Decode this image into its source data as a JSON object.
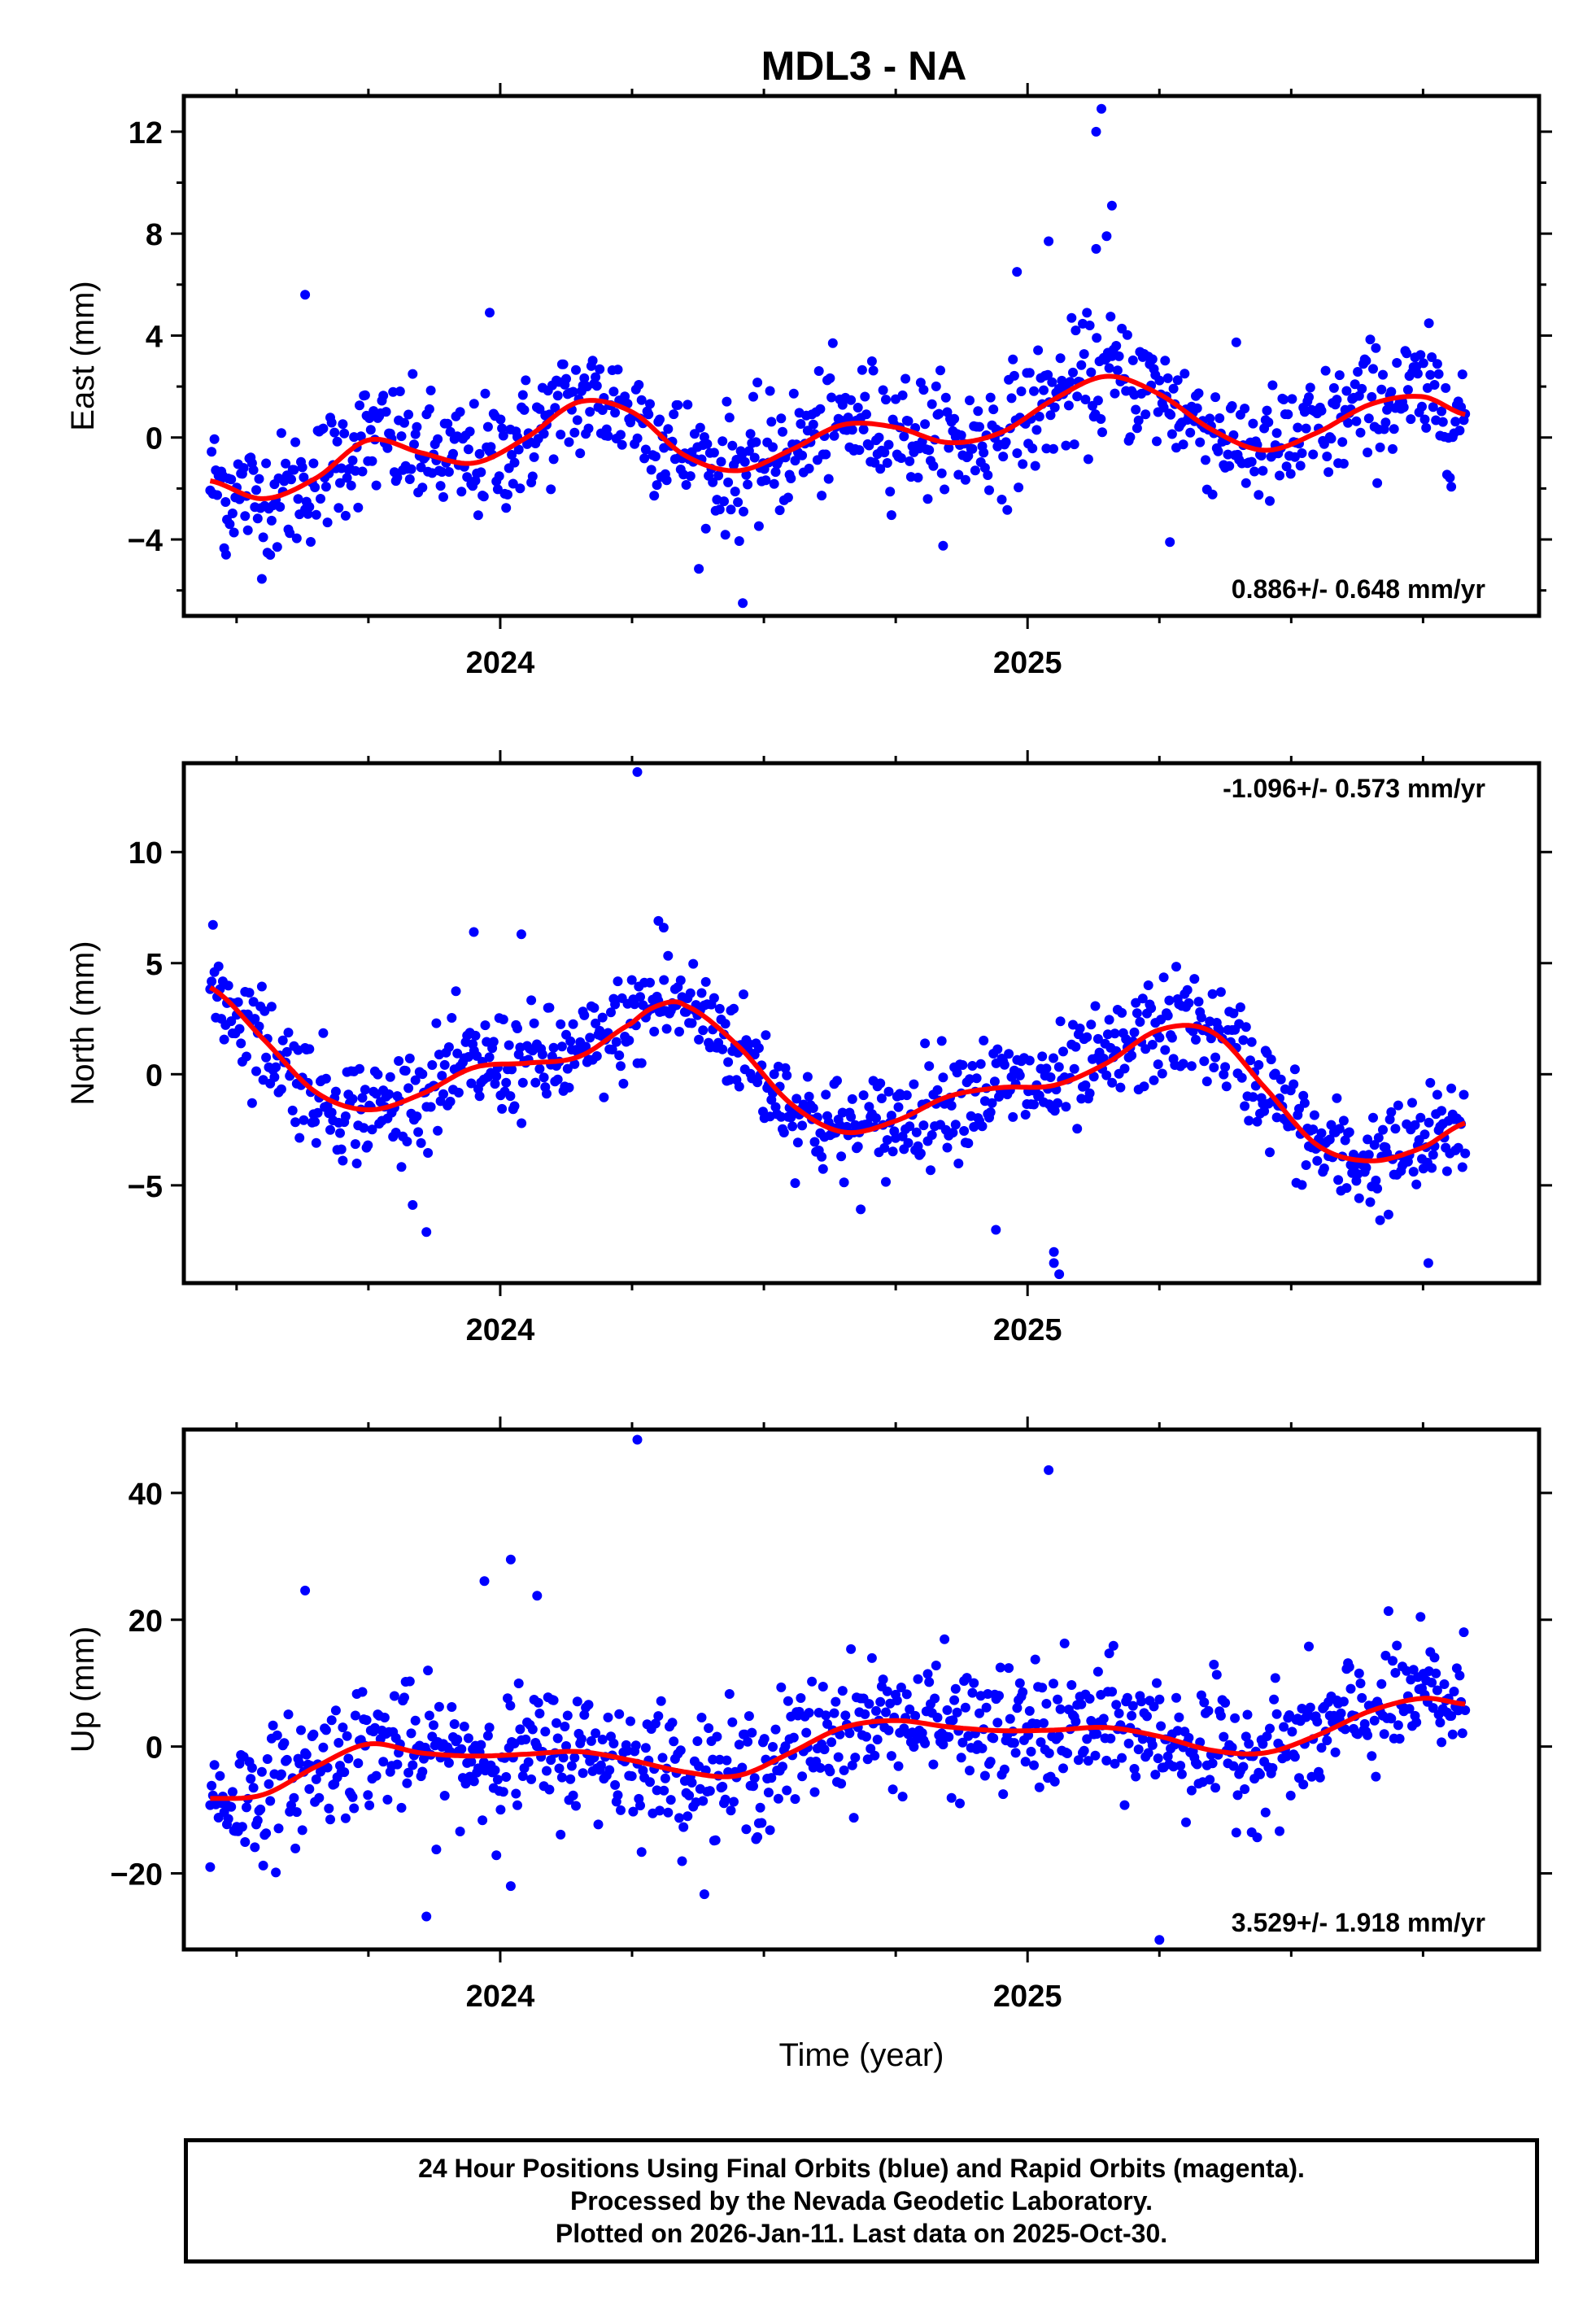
{
  "chart_data": [
    {
      "type": "scatter",
      "title": "MDL3 - NA",
      "ylabel": "East (mm)",
      "xlabel": "",
      "xlim": [
        2023.4,
        2025.97
      ],
      "ylim": [
        -7.0,
        13.4
      ],
      "yticks": [
        -4,
        0,
        4,
        8,
        12
      ],
      "yminor": [
        -6,
        -2,
        2,
        6,
        10
      ],
      "xticks": [
        2024,
        2025
      ],
      "rate": "0.886+/- 0.648 mm/yr",
      "rate_position": "bottom-right",
      "point_count": 900,
      "noise_sigma": 1.2,
      "fit_x": [
        2023.45,
        2023.55,
        2023.65,
        2023.75,
        2023.85,
        2023.95,
        2024.05,
        2024.15,
        2024.25,
        2024.35,
        2024.45,
        2024.55,
        2024.65,
        2024.75,
        2024.85,
        2024.95,
        2025.05,
        2025.15,
        2025.25,
        2025.35,
        2025.45,
        2025.55,
        2025.65,
        2025.75,
        2025.83
      ],
      "fit_y": [
        -1.7,
        -2.4,
        -1.6,
        -0.1,
        -0.6,
        -1.0,
        0.0,
        1.4,
        1.0,
        -0.7,
        -1.3,
        -0.5,
        0.5,
        0.4,
        -0.2,
        0.2,
        1.5,
        2.4,
        1.7,
        0.3,
        -0.5,
        0.2,
        1.3,
        1.6,
        0.9
      ],
      "outliers": [
        [
          2025.14,
          12.9
        ],
        [
          2025.13,
          12.0
        ],
        [
          2025.16,
          9.1
        ],
        [
          2025.15,
          7.9
        ],
        [
          2025.13,
          7.4
        ],
        [
          2024.98,
          6.5
        ],
        [
          2025.04,
          7.7
        ],
        [
          2023.63,
          5.6
        ],
        [
          2023.98,
          4.9
        ],
        [
          2024.46,
          -6.5
        ],
        [
          2023.48,
          -4.6
        ],
        [
          2025.27,
          -4.1
        ]
      ]
    },
    {
      "type": "scatter",
      "title": "",
      "ylabel": "North (mm)",
      "xlabel": "",
      "xlim": [
        2023.4,
        2025.97
      ],
      "ylim": [
        -9.4,
        14.0
      ],
      "yticks": [
        -5,
        0,
        5,
        10
      ],
      "yminor": [],
      "xticks": [
        2024,
        2025
      ],
      "rate": "-1.096+/- 0.573 mm/yr",
      "rate_position": "top-right",
      "point_count": 900,
      "noise_sigma": 1.2,
      "fit_x": [
        2023.45,
        2023.55,
        2023.65,
        2023.75,
        2023.85,
        2023.95,
        2024.05,
        2024.15,
        2024.25,
        2024.3,
        2024.35,
        2024.45,
        2024.55,
        2024.65,
        2024.75,
        2024.85,
        2024.95,
        2025.05,
        2025.15,
        2025.25,
        2025.35,
        2025.45,
        2025.55,
        2025.65,
        2025.75,
        2025.83
      ],
      "fit_y": [
        3.9,
        1.6,
        -0.8,
        -1.6,
        -0.9,
        0.3,
        0.5,
        0.8,
        2.3,
        3.1,
        3.1,
        1.3,
        -1.3,
        -2.6,
        -2.1,
        -1.0,
        -0.6,
        -0.5,
        0.5,
        2.0,
        1.9,
        -0.6,
        -3.2,
        -3.9,
        -3.3,
        -2.2
      ],
      "outliers": [
        [
          2024.26,
          13.6
        ],
        [
          2025.05,
          -8.5
        ],
        [
          2025.05,
          -8.0
        ],
        [
          2025.06,
          -9.0
        ],
        [
          2024.94,
          -7.0
        ],
        [
          2023.86,
          -7.1
        ],
        [
          2025.76,
          -8.5
        ],
        [
          2024.3,
          6.9
        ],
        [
          2024.31,
          6.6
        ],
        [
          2024.04,
          6.3
        ],
        [
          2023.95,
          6.4
        ]
      ]
    },
    {
      "type": "scatter",
      "title": "",
      "ylabel": "Up (mm)",
      "xlabel": "Time (year)",
      "xlim": [
        2023.4,
        2025.97
      ],
      "ylim": [
        -32.0,
        50.0
      ],
      "yticks": [
        -20,
        0,
        20,
        40
      ],
      "yminor": [],
      "xticks": [
        2024,
        2025
      ],
      "rate": "3.529+/- 1.918 mm/yr",
      "rate_position": "bottom-right",
      "point_count": 900,
      "noise_sigma": 5.0,
      "fit_x": [
        2023.45,
        2023.55,
        2023.65,
        2023.75,
        2023.85,
        2023.95,
        2024.05,
        2024.15,
        2024.25,
        2024.35,
        2024.45,
        2024.55,
        2024.65,
        2024.75,
        2024.85,
        2024.95,
        2025.05,
        2025.15,
        2025.25,
        2025.35,
        2025.45,
        2025.55,
        2025.65,
        2025.75,
        2025.83
      ],
      "fit_y": [
        -8.2,
        -7.6,
        -3.2,
        0.4,
        -1.0,
        -1.5,
        -1.2,
        -0.8,
        -2.2,
        -4.0,
        -4.6,
        -1.0,
        3.0,
        4.1,
        3.1,
        2.5,
        2.6,
        3.0,
        1.6,
        -0.6,
        -1.0,
        1.8,
        5.6,
        7.6,
        6.7
      ],
      "outliers": [
        [
          2024.26,
          48.4
        ],
        [
          2025.04,
          43.6
        ],
        [
          2024.02,
          29.5
        ],
        [
          2023.97,
          26.1
        ],
        [
          2024.07,
          23.8
        ],
        [
          2023.63,
          24.6
        ],
        [
          2023.86,
          -26.8
        ],
        [
          2024.02,
          -22.0
        ],
        [
          2025.25,
          -30.5
        ],
        [
          2023.45,
          -19.0
        ]
      ]
    }
  ],
  "footer": {
    "line1": "24 Hour Positions Using Final Orbits (blue) and Rapid Orbits (magenta).",
    "line2": "Processed by the Nevada Geodetic Laboratory.",
    "line3": "Plotted on 2026-Jan-11. Last data on 2025-Oct-30."
  },
  "colors": {
    "points": "#0000ff",
    "fit": "#ff0000",
    "axis": "#000000"
  }
}
